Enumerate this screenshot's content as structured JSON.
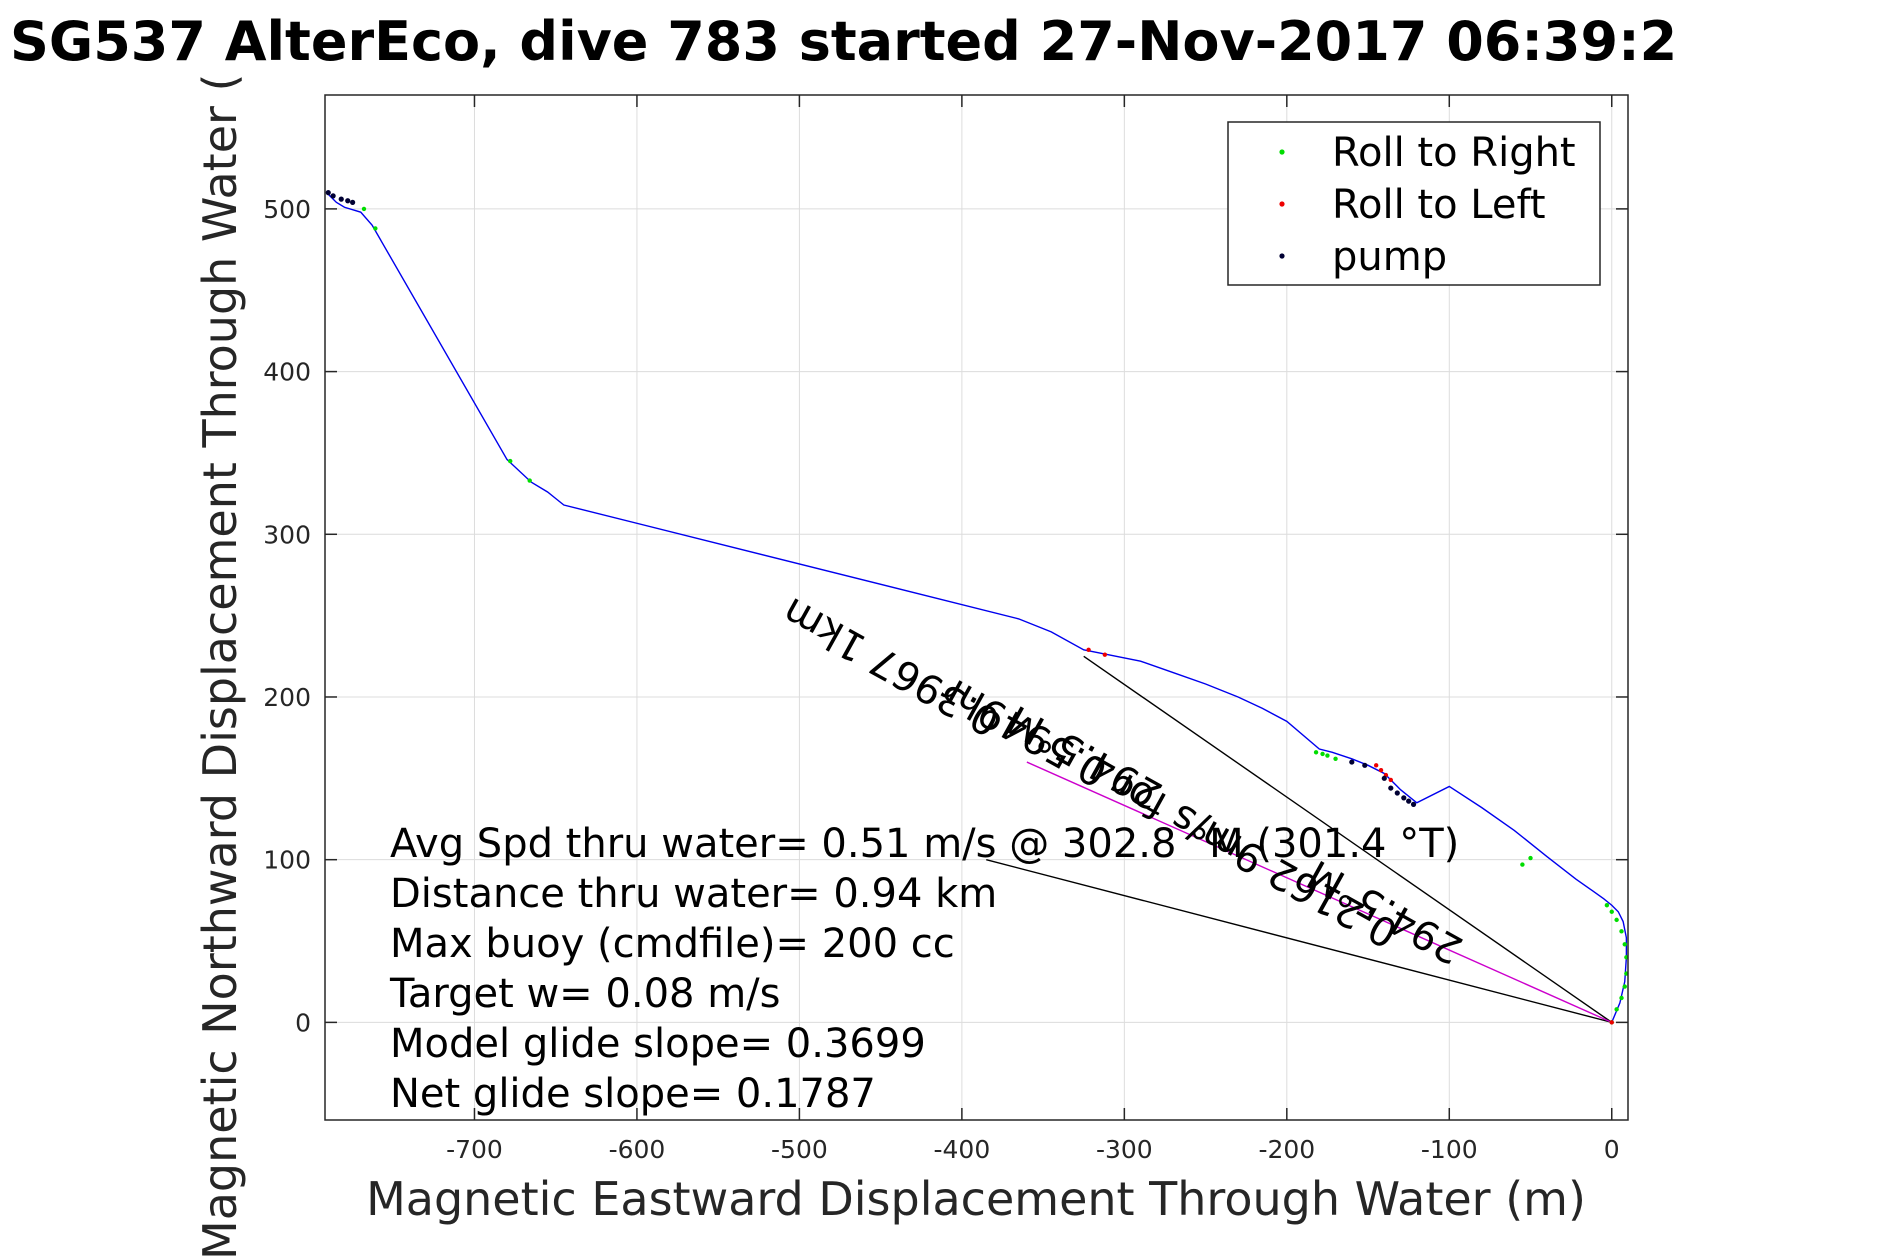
{
  "chart_data": {
    "type": "line",
    "title": "SG537 AlterEco, dive 783 started 27-Nov-2017 06:39:2",
    "xlabel": "Magnetic Eastward Displacement Through Water (m)",
    "ylabel": "Magnetic Northward Displacement Through Water (",
    "xlim": [
      -792,
      10
    ],
    "ylim": [
      -60,
      570
    ],
    "xticks": [
      -700,
      -600,
      -500,
      -400,
      -300,
      -200,
      -100,
      0
    ],
    "yticks": [
      0,
      100,
      200,
      300,
      400,
      500
    ],
    "grid": true,
    "legend_position": "top-right",
    "legend": [
      {
        "label": "Roll to Right",
        "color": "#00dd00"
      },
      {
        "label": "Roll to Left",
        "color": "#ee0000"
      },
      {
        "label": "pump",
        "color": "#000033"
      }
    ],
    "track": {
      "color": "#0000ee",
      "x": [
        0,
        5,
        8,
        9,
        9,
        7,
        4,
        0,
        -5,
        -12,
        -22,
        -40,
        -60,
        -80,
        -100,
        -120,
        -130,
        -140,
        -150,
        -160,
        -172,
        -180,
        -200,
        -215,
        -230,
        -250,
        -270,
        -290,
        -310,
        -325,
        -345,
        -365,
        -645,
        -650,
        -655,
        -665,
        -680,
        -763,
        -770,
        -780,
        -785,
        -788,
        -790
      ],
      "y": [
        0,
        12,
        25,
        40,
        52,
        62,
        68,
        72,
        76,
        81,
        88,
        102,
        118,
        132,
        145,
        135,
        143,
        153,
        158,
        162,
        166,
        168,
        185,
        193,
        200,
        208,
        215,
        222,
        226,
        229,
        240,
        248,
        318,
        322,
        326,
        332,
        346,
        490,
        498,
        501,
        504,
        507,
        509
      ]
    },
    "roll_right": {
      "x": [
        0,
        3,
        6,
        8,
        9,
        9,
        8,
        6,
        3,
        0,
        -3,
        -50,
        -55,
        -170,
        -175,
        -178,
        -182,
        -678,
        -666,
        -761,
        -768
      ],
      "y": [
        0,
        8,
        15,
        22,
        30,
        40,
        48,
        56,
        63,
        68,
        72,
        101,
        97,
        162,
        164,
        165,
        166,
        345,
        333,
        488,
        500
      ]
    },
    "roll_left": {
      "x": [
        0,
        -145,
        -142,
        -139,
        -136,
        -322,
        -312
      ],
      "y": [
        0,
        158,
        155,
        152,
        149,
        229,
        226
      ]
    },
    "pump": {
      "x": [
        -160,
        -152,
        -140,
        -136,
        -132,
        -128,
        -125,
        -122,
        -790,
        -787,
        -782,
        -778,
        -775
      ],
      "y": [
        160,
        158,
        150,
        144,
        141,
        138,
        136,
        134,
        510,
        508,
        506,
        505,
        504
      ]
    },
    "current_vector": {
      "x": [
        0,
        -325
      ],
      "y": [
        0,
        225
      ],
      "color": "#000000"
    },
    "surface_vector": {
      "x": [
        0,
        -385
      ],
      "y": [
        0,
        100
      ],
      "color": "#000000"
    },
    "heading_line": {
      "x": [
        0,
        -360
      ],
      "y": [
        0,
        160
      ],
      "color": "#cc00cc"
    },
    "annotations": [
      {
        "text": "0.3967 1km",
        "x": -375,
        "y": 190,
        "rotation": 29
      },
      {
        "text": "294.5°M",
        "x": -275,
        "y": 145,
        "rotation": 29
      },
      {
        "text": "0.2162 9m/s for 0.5949hr",
        "x": -130,
        "y": 60,
        "rotation": 29
      },
      {
        "text": "294.5°M",
        "x": -90,
        "y": 50,
        "rotation": 29
      }
    ],
    "stats": [
      "Avg Spd thru water=  0.51 m/s @ 302.8 °M (301.4 °T)",
      "Distance thru water=  0.94 km",
      "Max buoy (cmdfile)= 200 cc",
      "Target w= 0.08 m/s",
      "Model glide slope= 0.3699",
      "Net glide slope= 0.1787"
    ]
  }
}
